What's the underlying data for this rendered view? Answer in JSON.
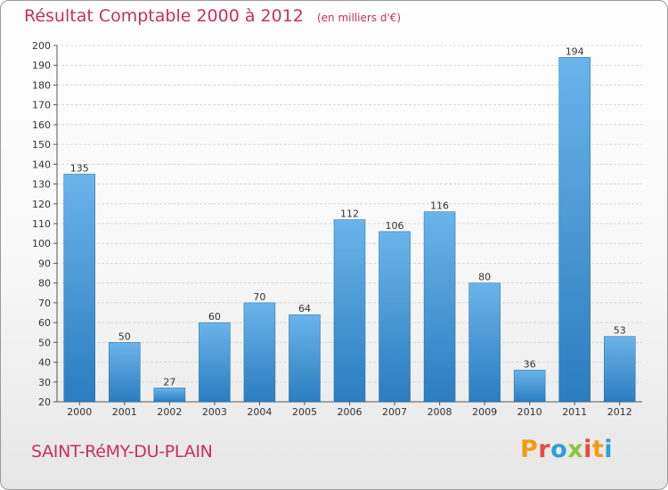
{
  "header": {
    "title": "Résultat Comptable 2000 à 2012",
    "subtitle": "(en milliers d'€)"
  },
  "footer": {
    "place": "SAINT-RéMY-DU-PLAIN",
    "logo_text": "Proxiti"
  },
  "colors": {
    "title": "#c7305a",
    "bar_light": "#6ab4ea",
    "bar_dark": "#2a7dc0",
    "logo": [
      "#f39c12",
      "#e74c3c",
      "#2e9fd8",
      "#8cc63f",
      "#e74c3c",
      "#f39c12",
      "#2e9fd8"
    ]
  },
  "chart_data": {
    "type": "bar",
    "title": "Résultat Comptable 2000 à 2012",
    "subtitle": "(en milliers d'€)",
    "categories": [
      "2000",
      "2001",
      "2002",
      "2003",
      "2004",
      "2005",
      "2006",
      "2007",
      "2008",
      "2009",
      "2010",
      "2011",
      "2012"
    ],
    "values": [
      135,
      50,
      27,
      60,
      70,
      64,
      112,
      106,
      116,
      80,
      36,
      194,
      53
    ],
    "ylim": [
      20,
      200
    ],
    "yticks": [
      20,
      30,
      40,
      50,
      60,
      70,
      80,
      90,
      100,
      110,
      120,
      130,
      140,
      150,
      160,
      170,
      180,
      190,
      200
    ],
    "grid": true,
    "legend": "none"
  }
}
